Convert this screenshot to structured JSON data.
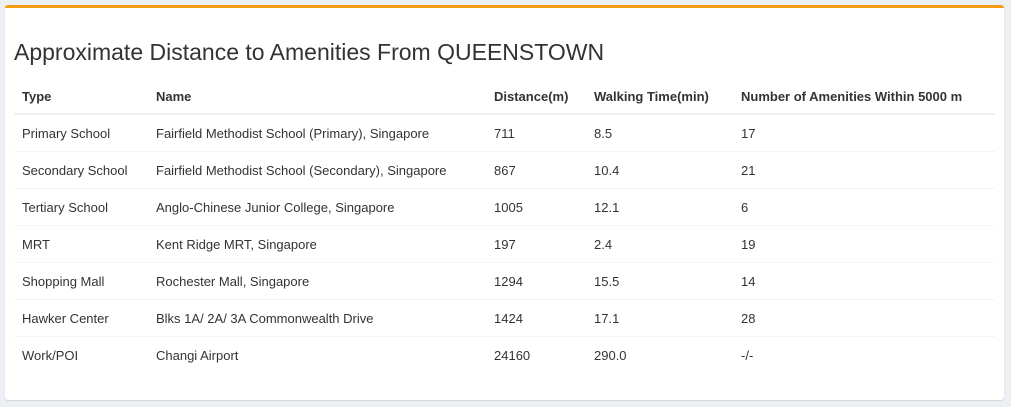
{
  "panel": {
    "title": "Approximate Distance to Amenities From QUEENSTOWN",
    "accent_color": "#f39c12"
  },
  "table": {
    "headers": {
      "type": "Type",
      "name": "Name",
      "distance": "Distance(m)",
      "walking_time": "Walking Time(min)",
      "amenities_within": "Number of Amenities Within 5000 m"
    },
    "rows": [
      {
        "type": "Primary School",
        "name": "Fairfield Methodist School (Primary), Singapore",
        "distance": "711",
        "walking_time": "8.5",
        "amenities_within": "17"
      },
      {
        "type": "Secondary School",
        "name": "Fairfield Methodist School (Secondary), Singapore",
        "distance": "867",
        "walking_time": "10.4",
        "amenities_within": "21"
      },
      {
        "type": "Tertiary School",
        "name": "Anglo-Chinese Junior College, Singapore",
        "distance": "1005",
        "walking_time": "12.1",
        "amenities_within": "6"
      },
      {
        "type": "MRT",
        "name": "Kent Ridge MRT, Singapore",
        "distance": "197",
        "walking_time": "2.4",
        "amenities_within": "19"
      },
      {
        "type": "Shopping Mall",
        "name": "Rochester Mall, Singapore",
        "distance": "1294",
        "walking_time": "15.5",
        "amenities_within": "14"
      },
      {
        "type": "Hawker Center",
        "name": "Blks 1A/ 2A/ 3A Commonwealth Drive",
        "distance": "1424",
        "walking_time": "17.1",
        "amenities_within": "28"
      },
      {
        "type": "Work/POI",
        "name": "Changi Airport",
        "distance": "24160",
        "walking_time": "290.0",
        "amenities_within": "-/-"
      }
    ]
  }
}
